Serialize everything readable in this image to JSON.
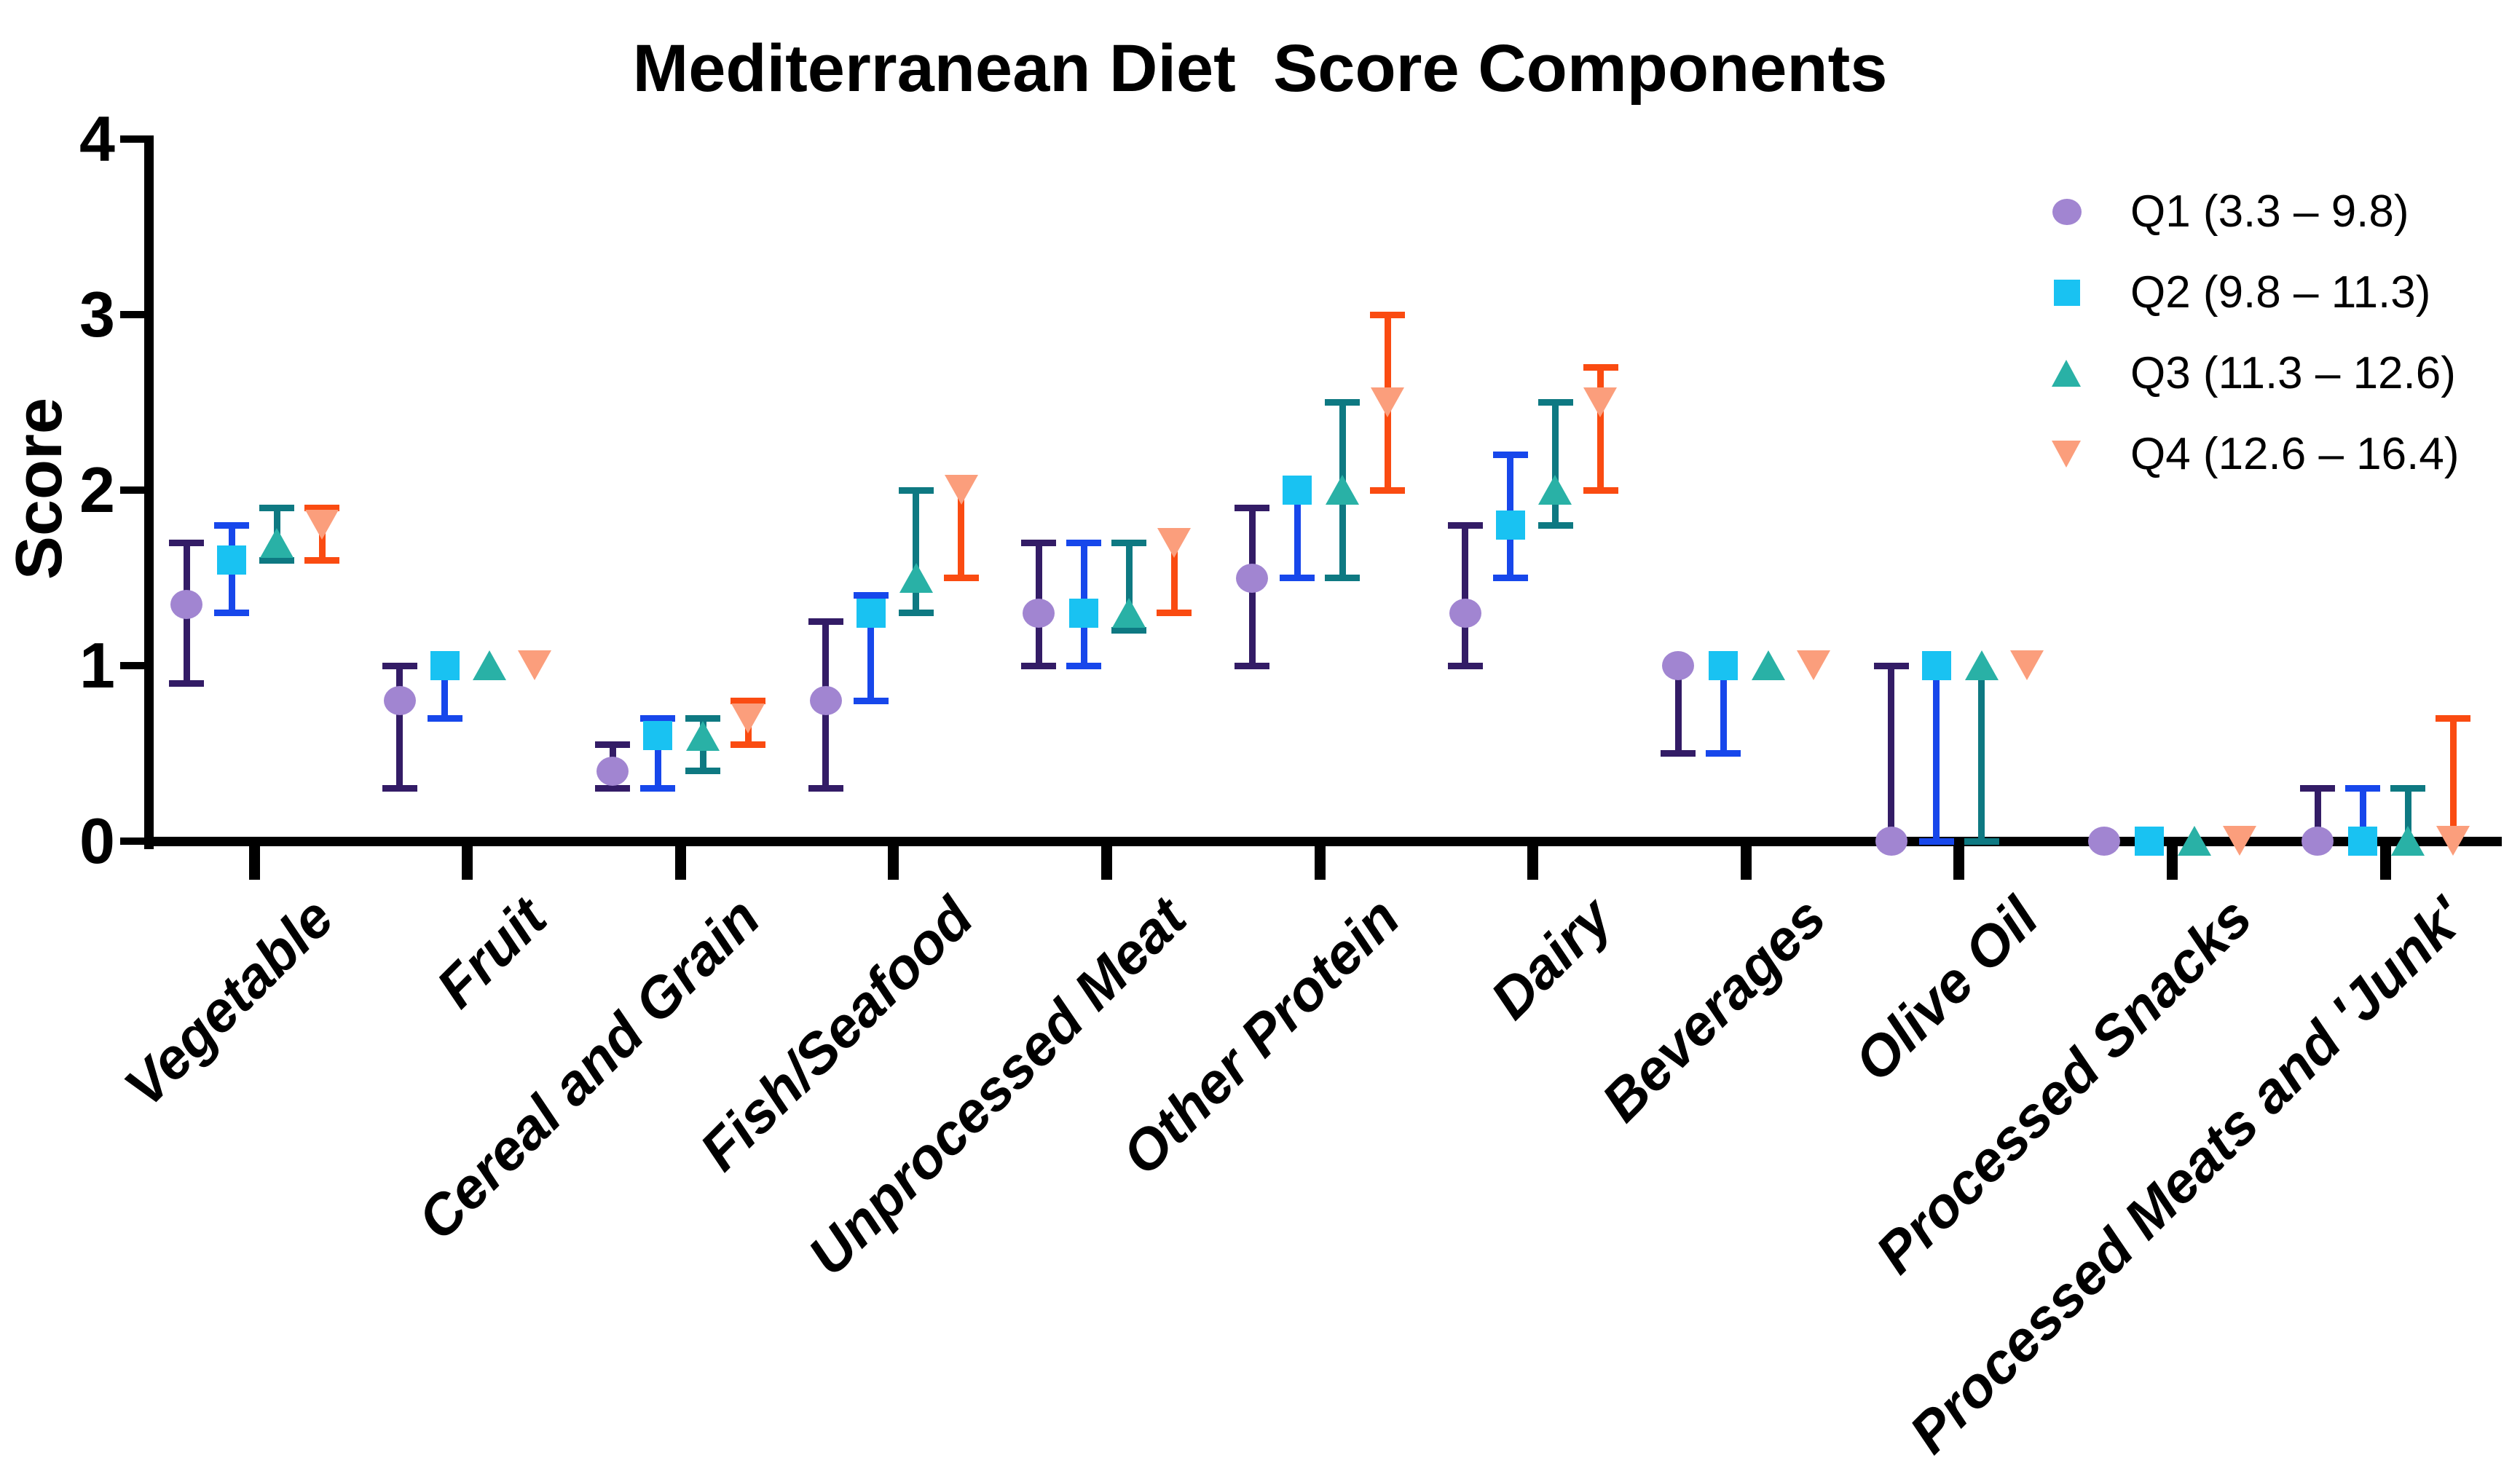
{
  "title": "Mediterranean Diet  Score Components",
  "chart_data": {
    "type": "scatter",
    "title": "Mediterranean Diet  Score Components",
    "xlabel": "",
    "ylabel": "Score",
    "ylim": [
      0,
      4
    ],
    "ytick_labels": [
      "0",
      "1",
      "2",
      "3",
      "4"
    ],
    "grid": false,
    "legend_position": "top-right",
    "error_bars": "median with interquartile range (lo-hi)",
    "categories": [
      "Vegetable",
      "Fruit",
      "Cereal and Grain",
      "Fish/Seafood",
      "Unprocessed Meat",
      "Other Protein",
      "Dairy",
      "Beverages",
      "Olive Oil",
      "Processed Snacks",
      "Processed Meats and 'Junk'"
    ],
    "series": [
      {
        "name": "Q1",
        "legend_label": "Q1 (3.3 – 9.8)",
        "marker": "circle",
        "marker_color": "#A185D1",
        "bar_color": "#331C66",
        "values": [
          1.35,
          0.8,
          0.4,
          0.8,
          1.3,
          1.5,
          1.3,
          1.0,
          0.0,
          0.0,
          0.0
        ],
        "lo": [
          0.9,
          0.3,
          0.3,
          0.3,
          1.0,
          1.0,
          1.0,
          0.5,
          0.0,
          0.0,
          0.0
        ],
        "hi": [
          1.7,
          1.0,
          0.55,
          1.25,
          1.7,
          1.9,
          1.8,
          1.0,
          1.0,
          0.0,
          0.3
        ]
      },
      {
        "name": "Q2",
        "legend_label": "Q2 (9.8 – 11.3)",
        "marker": "square",
        "marker_color": "#19C2F2",
        "bar_color": "#1747EB",
        "values": [
          1.6,
          1.0,
          0.6,
          1.3,
          1.3,
          2.0,
          1.8,
          1.0,
          1.0,
          0.0,
          0.0
        ],
        "lo": [
          1.3,
          0.7,
          0.3,
          0.8,
          1.0,
          1.5,
          1.5,
          0.5,
          0.0,
          0.0,
          0.0
        ],
        "hi": [
          1.8,
          1.0,
          0.7,
          1.4,
          1.7,
          2.0,
          2.2,
          1.0,
          1.0,
          0.0,
          0.3
        ]
      },
      {
        "name": "Q3",
        "legend_label": "Q3 (11.3 – 12.6)",
        "marker": "triangle-up",
        "marker_color": "#29B1A6",
        "bar_color": "#0E7982",
        "values": [
          1.7,
          1.0,
          0.6,
          1.5,
          1.3,
          2.0,
          2.0,
          1.0,
          1.0,
          0.0,
          0.0
        ],
        "lo": [
          1.6,
          1.0,
          0.4,
          1.3,
          1.2,
          1.5,
          1.8,
          1.0,
          0.0,
          0.0,
          0.0
        ],
        "hi": [
          1.9,
          1.0,
          0.7,
          2.0,
          1.7,
          2.5,
          2.5,
          1.0,
          1.0,
          0.0,
          0.3
        ]
      },
      {
        "name": "Q4",
        "legend_label": "Q4 (12.6 – 16.4)",
        "marker": "triangle-down",
        "marker_color": "#FB9E7C",
        "bar_color": "#FA4B11",
        "values": [
          1.8,
          1.0,
          0.7,
          2.0,
          1.7,
          2.5,
          2.5,
          1.0,
          1.0,
          0.0,
          0.0
        ],
        "lo": [
          1.6,
          1.0,
          0.55,
          1.5,
          1.3,
          2.0,
          2.0,
          1.0,
          1.0,
          0.0,
          0.0
        ],
        "hi": [
          1.9,
          1.0,
          0.8,
          2.0,
          1.7,
          3.0,
          2.7,
          1.0,
          1.0,
          0.0,
          0.7
        ]
      }
    ],
    "axis_color": "#000000"
  }
}
